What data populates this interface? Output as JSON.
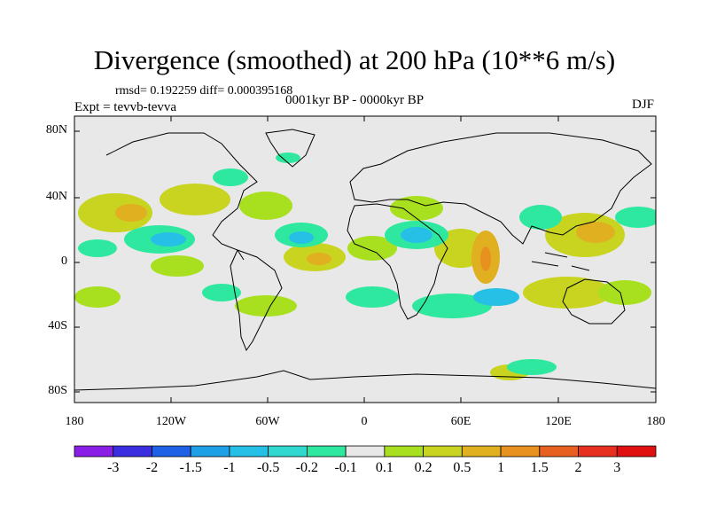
{
  "title": "Divergence (smoothed) at 200 hPa (10**6 m/s)",
  "stats": "rmsd= 0.192259  diff= 0.000395168",
  "experiment": "Expt = tevvb-tevva",
  "period": "0001kyr BP - 0000kyr BP",
  "season": "DJF",
  "map": {
    "lon_range": [
      -180,
      180
    ],
    "lat_range": [
      -90,
      90
    ],
    "background_color": "#e8e8e8",
    "coastline_color": "#000000",
    "y_ticks": [
      {
        "label": "80N"
      },
      {
        "label": "40N"
      },
      {
        "label": "0"
      },
      {
        "label": "40S"
      },
      {
        "label": "80S"
      }
    ],
    "x_ticks": [
      {
        "label": "180"
      },
      {
        "label": "120W"
      },
      {
        "label": "60W"
      },
      {
        "label": "0"
      },
      {
        "label": "60E"
      },
      {
        "label": "120E"
      },
      {
        "label": "180"
      }
    ]
  },
  "colorbar": {
    "colors": [
      "#8a1ee6",
      "#3a2ee0",
      "#1e60e6",
      "#1ea0e6",
      "#26c0e6",
      "#30d8d0",
      "#2ee8a0",
      "#e8e8e8",
      "#a8e020",
      "#c8d420",
      "#e0b020",
      "#e89020",
      "#e86020",
      "#e83020",
      "#e01010"
    ],
    "labels": [
      "-3",
      "-2",
      "-1.5",
      "-1",
      "-0.5",
      "-0.2",
      "-0.1",
      "0.1",
      "0.2",
      "0.5",
      "1",
      "1.5",
      "2",
      "3"
    ]
  }
}
